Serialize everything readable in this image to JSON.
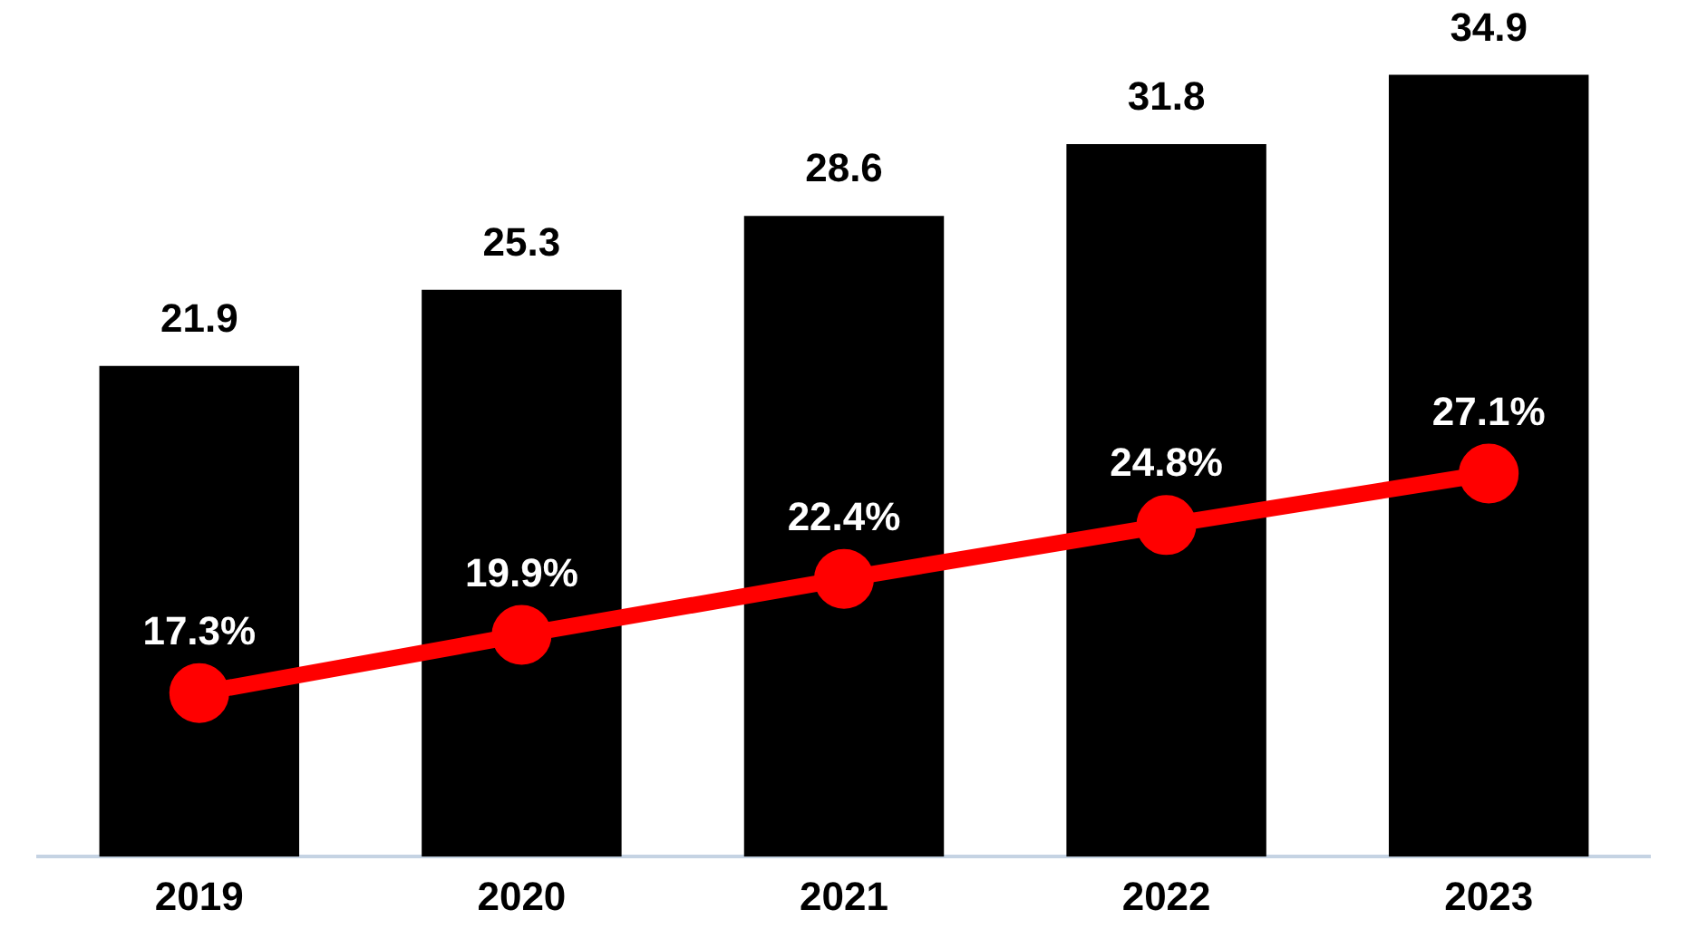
{
  "chart_data": {
    "type": "bar",
    "categories": [
      "2019",
      "2020",
      "2021",
      "2022",
      "2023"
    ],
    "series": [
      {
        "color": "#000000",
        "values": [
          21.9,
          25.3,
          28.6,
          31.8,
          34.9
        ]
      },
      {
        "type": "line",
        "axis": "y2",
        "color": "#ff0000",
        "values": [
          17.3,
          19.9,
          22.4,
          24.8,
          27.1
        ],
        "value_labels": [
          "17.3%",
          "19.9%",
          "22.4%",
          "24.8%",
          "27.1%"
        ]
      }
    ],
    "ylim": [
      0,
      35
    ],
    "y2lim": [
      10,
      45
    ],
    "data_labels": true,
    "marker": "circle",
    "line_style": "solid",
    "grid": false,
    "legend": false
  }
}
